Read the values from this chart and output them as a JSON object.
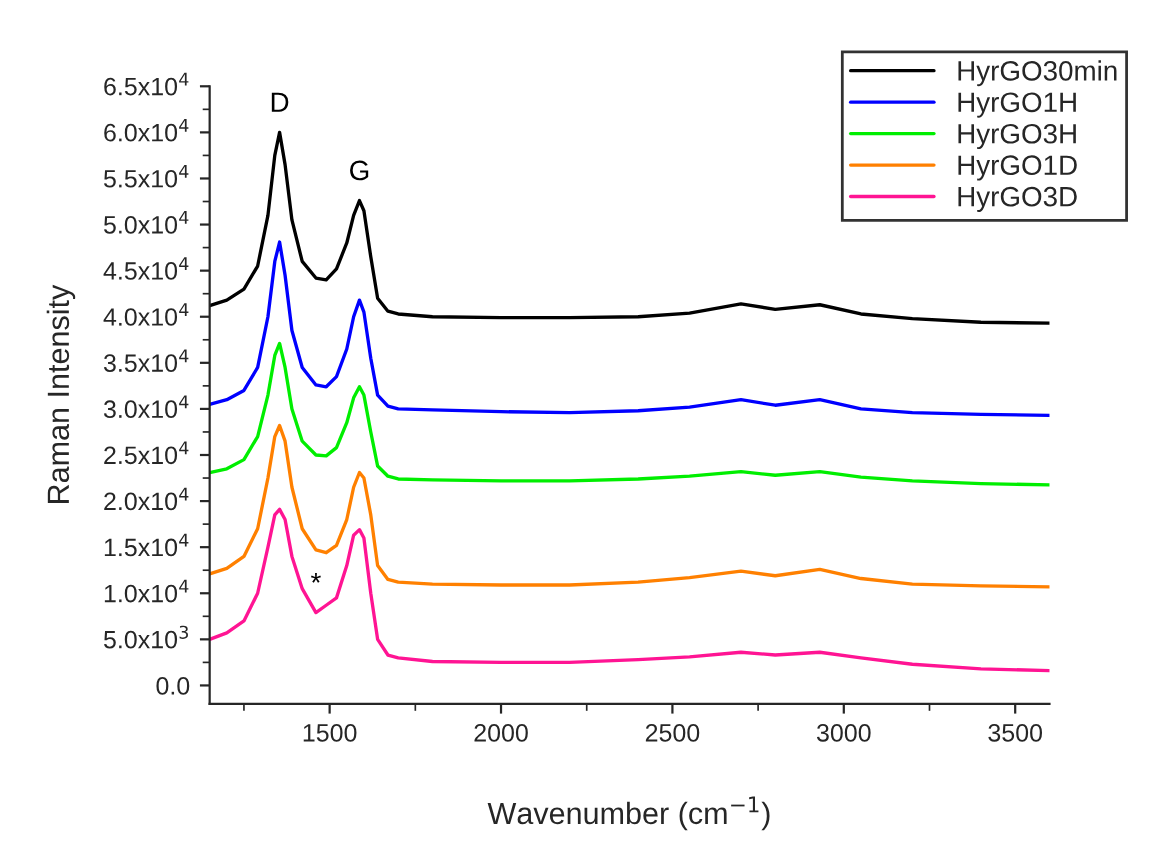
{
  "chart_data": {
    "type": "line",
    "xlabel": "Wavenumber (cm$^{−1}$)",
    "ylabel": "Raman Intensity",
    "x": [
      1150,
      1200,
      1250,
      1290,
      1320,
      1340,
      1354,
      1370,
      1390,
      1420,
      1460,
      1490,
      1520,
      1550,
      1570,
      1587,
      1600,
      1620,
      1640,
      1670,
      1700,
      1800,
      2000,
      2200,
      2400,
      2550,
      2700,
      2800,
      2930,
      3050,
      3200,
      3400,
      3600
    ],
    "series": [
      {
        "name": "HyrGO30min",
        "color": "#000000",
        "values": [
          41200,
          41800,
          43000,
          45500,
          51000,
          57500,
          60000,
          56500,
          50500,
          46000,
          44200,
          44000,
          45200,
          48000,
          51000,
          52600,
          51500,
          46500,
          42000,
          40600,
          40300,
          40000,
          39900,
          39900,
          40000,
          40400,
          41400,
          40800,
          41300,
          40300,
          39800,
          39400,
          39300
        ]
      },
      {
        "name": "HyrGO1H",
        "color": "#0000ff",
        "values": [
          30500,
          31000,
          32000,
          34500,
          40000,
          46000,
          48100,
          44500,
          38500,
          34500,
          32600,
          32400,
          33500,
          36500,
          40000,
          41800,
          40500,
          35500,
          31500,
          30300,
          30000,
          29900,
          29700,
          29600,
          29800,
          30200,
          31000,
          30400,
          31000,
          30000,
          29600,
          29400,
          29300
        ]
      },
      {
        "name": "HyrGO3H",
        "color": "#00ee00",
        "values": [
          23100,
          23500,
          24500,
          27000,
          31500,
          35800,
          37100,
          34500,
          30000,
          26500,
          25000,
          24900,
          25800,
          28500,
          31200,
          32400,
          31500,
          27500,
          23800,
          22700,
          22400,
          22300,
          22200,
          22200,
          22400,
          22700,
          23200,
          22800,
          23200,
          22600,
          22200,
          21900,
          21750
        ]
      },
      {
        "name": "HyrGO1D",
        "color": "#ff8000",
        "values": [
          12100,
          12700,
          14000,
          17000,
          22500,
          27000,
          28200,
          26500,
          21500,
          17000,
          14700,
          14400,
          15200,
          18000,
          21500,
          23100,
          22500,
          18500,
          13000,
          11500,
          11200,
          11000,
          10900,
          10900,
          11200,
          11700,
          12400,
          11900,
          12600,
          11600,
          11000,
          10800,
          10700
        ]
      },
      {
        "name": "HyrGO3D",
        "color": "#ff1493",
        "values": [
          5000,
          5700,
          7000,
          10000,
          15000,
          18500,
          19100,
          18000,
          14000,
          10500,
          7900,
          8700,
          9500,
          13000,
          16300,
          16900,
          16000,
          10000,
          5000,
          3300,
          3000,
          2600,
          2500,
          2500,
          2800,
          3100,
          3600,
          3300,
          3600,
          3000,
          2300,
          1800,
          1600
        ]
      }
    ],
    "xlim": [
      1150,
      3600
    ],
    "xticks": [
      1500,
      2000,
      2500,
      3000,
      3500
    ],
    "ylim": [
      -2000,
      65000
    ],
    "yticks": [
      {
        "value": 0,
        "label": "0.0"
      },
      {
        "value": 5000,
        "label": "5.0x10$^{3}$"
      },
      {
        "value": 10000,
        "label": "1.0x10$^{4}$"
      },
      {
        "value": 15000,
        "label": "1.5x10$^{4}$"
      },
      {
        "value": 20000,
        "label": "2.0x10$^{4}$"
      },
      {
        "value": 25000,
        "label": "2.5x10$^{4}$"
      },
      {
        "value": 30000,
        "label": "3.0x10$^{4}$"
      },
      {
        "value": 35000,
        "label": "3.5x10$^{4}$"
      },
      {
        "value": 40000,
        "label": "4.0x10$^{4}$"
      },
      {
        "value": 45000,
        "label": "4.5x10$^{4}$"
      },
      {
        "value": 50000,
        "label": "5.0x10$^{4}$"
      },
      {
        "value": 55000,
        "label": "5.5x10$^{4}$"
      },
      {
        "value": 60000,
        "label": "6.0x10$^{4}$"
      },
      {
        "value": 65000,
        "label": "6.5x10$^{4}$"
      }
    ],
    "annotations": [
      {
        "text": "D",
        "x": 1354,
        "y": 60000
      },
      {
        "text": "G",
        "x": 1587,
        "y": 52600
      },
      {
        "text": "*",
        "x": 1460,
        "y": 7900
      }
    ],
    "legend": "top right",
    "grid": false,
    "marker": "none",
    "line_style": "solid"
  }
}
